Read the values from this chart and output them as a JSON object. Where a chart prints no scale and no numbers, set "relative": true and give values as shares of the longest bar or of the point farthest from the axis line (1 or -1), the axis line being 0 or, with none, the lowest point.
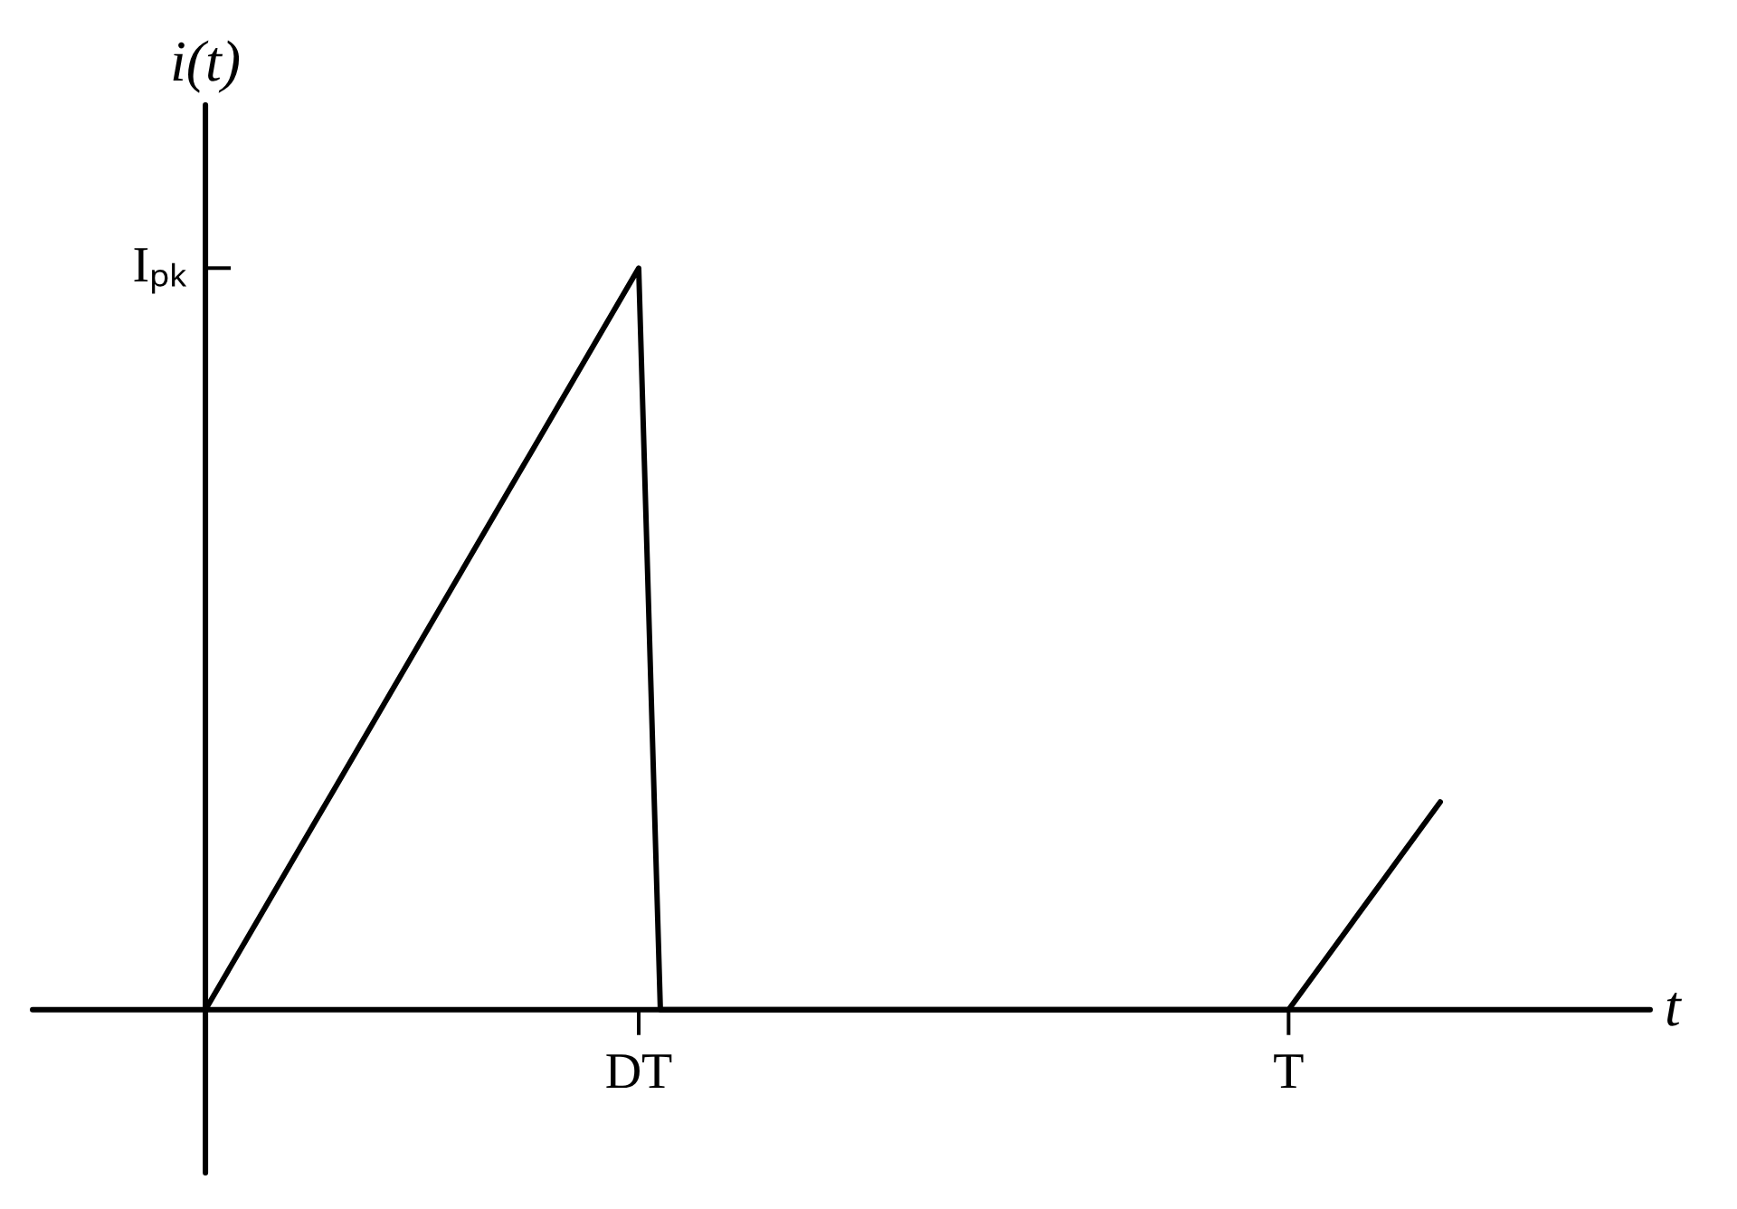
{
  "chart_data": {
    "type": "line",
    "xlabel": "t",
    "ylabel": "i(t)",
    "relative": true,
    "categories": [
      null,
      null,
      null,
      null,
      null,
      null,
      null,
      null,
      null,
      null,
      null,
      null,
      null,
      null,
      null,
      null,
      null,
      null,
      null,
      null,
      "DT",
      null,
      null,
      null,
      null,
      null,
      null,
      null,
      null,
      null,
      null,
      null,
      null,
      null,
      null,
      null,
      null,
      null,
      null,
      null,
      null,
      null,
      null,
      null,
      null,
      null,
      null,
      null,
      null,
      null,
      "T",
      null,
      null,
      null,
      null,
      null,
      null,
      null
    ],
    "series": [
      {
        "color": "#000000",
        "values": [
          0,
          0.05,
          0.1,
          0.15,
          0.2,
          0.25,
          0.3,
          0.35,
          0.4,
          0.45,
          0.5,
          0.55,
          0.6,
          0.65,
          0.7,
          0.75,
          0.8,
          0.85,
          0.9,
          0.95,
          1,
          0,
          0,
          0,
          0,
          0,
          0,
          0,
          0,
          0,
          0,
          0,
          0,
          0,
          0,
          0,
          0,
          0,
          0,
          0,
          0,
          0,
          0,
          0,
          0,
          0,
          0,
          0,
          0,
          0,
          0,
          0.04,
          0.08,
          0.12,
          0.16,
          0.2,
          0.24,
          0.28
        ]
      }
    ],
    "annotations": [
      "Iₚₖ"
    ],
    "legend": false,
    "marker": "none",
    "line_style": "solid"
  }
}
